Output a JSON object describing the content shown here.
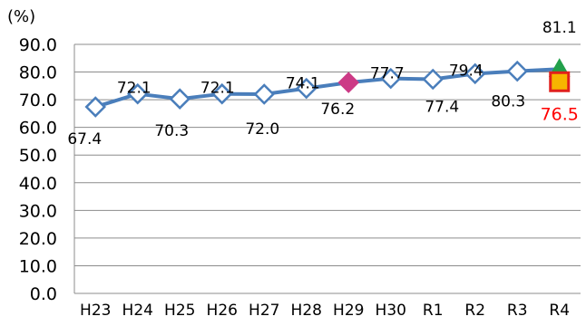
{
  "chart_data": {
    "type": "line",
    "unit_label": "(%)",
    "categories": [
      "H23",
      "H24",
      "H25",
      "H26",
      "H27",
      "H28",
      "H29",
      "H30",
      "R1",
      "R2",
      "R3",
      "R4"
    ],
    "series": [
      {
        "values": [
          67.4,
          72.1,
          70.3,
          72.1,
          72.0,
          74.1,
          76.2,
          77.7,
          77.4,
          79.4,
          80.3,
          81.1
        ],
        "data_labels": [
          "67.4",
          "72.1",
          "70.3",
          "72.1",
          "72.0",
          "74.1",
          "76.2",
          "77.7",
          "77.4",
          "79.4",
          "80.3",
          "81.1"
        ],
        "color": "#4a7ebb",
        "marker": "diamond-open"
      }
    ],
    "highlight_points": [
      {
        "category": "H29",
        "value": 76.2,
        "marker": "diamond",
        "color": "#cc3a86"
      },
      {
        "category": "R4",
        "value": 81.1,
        "marker": "triangle",
        "color": "#22a04b"
      }
    ],
    "extra_points": [
      {
        "category": "R4",
        "value": 76.5,
        "label": "76.5",
        "marker": "square",
        "fill": "#f7b500",
        "stroke": "#e0201c",
        "label_color": "#ff0000"
      }
    ],
    "ylim": [
      0,
      90
    ],
    "yticks": [
      "0.0",
      "10.0",
      "20.0",
      "30.0",
      "40.0",
      "50.0",
      "60.0",
      "70.0",
      "80.0",
      "90.0"
    ],
    "grid": true
  }
}
